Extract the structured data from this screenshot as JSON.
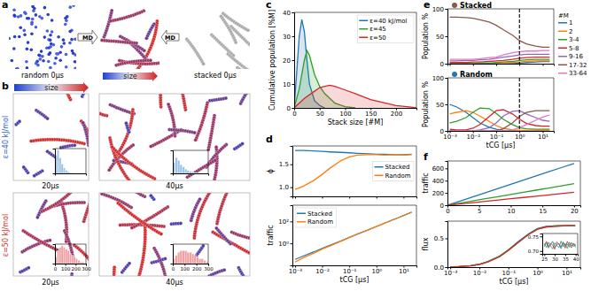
{
  "figure": {
    "panel_labels": [
      "a",
      "b",
      "c",
      "d",
      "e",
      "f"
    ],
    "random_label": "random 0μs",
    "stacked_label": "stacked 0μs",
    "md": "MD",
    "size": "size",
    "eps40": "ε=40 kJ/mol",
    "eps50": "ε=50 kJ/mol",
    "times": [
      "20μs",
      "40μs"
    ]
  },
  "chart_data": [
    {
      "type": "line",
      "xlabel": "Stack size [#M]",
      "ylabel": "Cumulative population [%M]",
      "xlim": [
        0,
        240
      ],
      "xticks": [
        0,
        50,
        100,
        150,
        200
      ],
      "ylim": [
        0,
        40
      ],
      "yticks": [
        0,
        10,
        20,
        30,
        40
      ],
      "legend": "upper right",
      "series": [
        {
          "name": "ε=40 kJ/mol",
          "color": "#1f77b4",
          "type": "area",
          "x": [
            0,
            5,
            10,
            15,
            20,
            25,
            30,
            40,
            50,
            60
          ],
          "values": [
            0,
            15,
            30,
            37,
            32,
            20,
            10,
            3,
            1,
            0
          ]
        },
        {
          "name": "ε=45",
          "color": "#2ca02c",
          "type": "area",
          "x": [
            0,
            10,
            20,
            25,
            30,
            40,
            50,
            60,
            70,
            80,
            100,
            120
          ],
          "values": [
            0,
            8,
            20,
            24,
            22,
            14,
            9,
            6,
            4,
            2,
            0.5,
            0
          ]
        },
        {
          "name": "ε=50",
          "color": "#d62728",
          "type": "area",
          "x": [
            0,
            20,
            40,
            50,
            60,
            70,
            80,
            100,
            120,
            150,
            180,
            200,
            230,
            240
          ],
          "values": [
            0,
            4,
            7,
            8.5,
            9,
            9.5,
            9,
            7.5,
            6,
            3.5,
            2,
            1,
            0.3,
            0
          ]
        }
      ]
    },
    {
      "type": "line",
      "log": "x",
      "ylabel": "ϕ",
      "x": [
        0.001,
        0.002,
        0.005,
        0.01,
        0.02,
        0.05,
        0.1,
        0.2,
        0.5,
        1,
        2,
        5,
        10,
        20
      ],
      "xlim": [
        0.0008,
        30
      ],
      "xticks": [
        0.001,
        0.01,
        0.1,
        1,
        10
      ],
      "ylim": [
        0.8,
        1.9
      ],
      "yticks": [
        {
          "value": 1,
          "label": "1.0"
        },
        {
          "value": 1.5,
          "label": "1.5"
        }
      ],
      "tick_labels": "y",
      "legend": "center right",
      "series": [
        {
          "name": "Stacked",
          "color": "#1f77b4",
          "values": [
            1.8,
            1.8,
            1.79,
            1.78,
            1.77,
            1.76,
            1.75,
            1.74,
            1.73,
            1.72,
            1.72,
            1.71,
            1.71,
            1.72
          ]
        },
        {
          "name": "Random",
          "color": "#ff7f0e",
          "values": [
            0.95,
            1.02,
            1.15,
            1.28,
            1.42,
            1.58,
            1.66,
            1.7,
            1.71,
            1.71,
            1.7,
            1.71,
            1.7,
            1.71
          ]
        }
      ]
    },
    {
      "type": "line",
      "log": true,
      "xlabel": "tCG [μs]",
      "ylabel": "traffic",
      "x": [
        0.001,
        0.002,
        0.005,
        0.01,
        0.02,
        0.05,
        0.1,
        0.2,
        0.5,
        1,
        2,
        5,
        10,
        20
      ],
      "xlim": [
        0.0008,
        30
      ],
      "xticks": [
        {
          "value": 0.001,
          "label": "10⁻³"
        },
        {
          "value": 0.01,
          "label": "10⁻²"
        },
        {
          "value": 0.1,
          "label": "10⁻¹"
        },
        {
          "value": 1,
          "label": "10⁰"
        },
        {
          "value": 10,
          "label": "10¹"
        }
      ],
      "ylim": [
        0.01,
        3000
      ],
      "yticks": [
        {
          "value": 1,
          "label": "10⁰"
        },
        {
          "value": 100,
          "label": "10²"
        }
      ],
      "legend": "upper left",
      "series": [
        {
          "name": "Stacked",
          "color": "#1f77b4",
          "values": [
            0.035,
            0.07,
            0.17,
            0.35,
            0.7,
            1.7,
            3.5,
            7,
            17,
            35,
            70,
            170,
            350,
            700
          ]
        },
        {
          "name": "Random",
          "color": "#ff7f0e",
          "values": [
            0.02,
            0.05,
            0.13,
            0.3,
            0.6,
            1.6,
            3.4,
            6.9,
            17,
            34,
            68,
            170,
            340,
            680
          ]
        }
      ]
    },
    {
      "type": "line",
      "log": "x",
      "title": "Stacked",
      "color": "#8c564b",
      "ylabel": "Population %",
      "x": [
        0.001,
        0.002,
        0.005,
        0.01,
        0.02,
        0.05,
        0.1,
        0.2,
        0.5,
        1,
        2,
        5,
        10,
        20
      ],
      "xlim": [
        0.0008,
        30
      ],
      "xticks": [
        0.001,
        0.01,
        0.1,
        1,
        10
      ],
      "ylim": [
        0,
        100
      ],
      "yticks": [
        0,
        50,
        100
      ],
      "tick_labels": "y",
      "legend": "right",
      "annotations": [
        "#M"
      ],
      "vline": 1,
      "series": [
        {
          "name": "1",
          "color": "#1f77b4",
          "values": [
            0,
            0,
            0,
            0,
            0,
            0,
            0,
            0,
            0,
            1,
            2,
            3,
            4,
            4
          ]
        },
        {
          "name": "2",
          "color": "#ff7f0e",
          "values": [
            0,
            0,
            0,
            0,
            0,
            0,
            1,
            1,
            2,
            3,
            4,
            5,
            5,
            5
          ]
        },
        {
          "name": "3-4",
          "color": "#2ca02c",
          "values": [
            0,
            0,
            0,
            0,
            1,
            1,
            2,
            3,
            4,
            6,
            7,
            8,
            8,
            8
          ]
        },
        {
          "name": "5-8",
          "color": "#d62728",
          "values": [
            2,
            2,
            2,
            3,
            3,
            4,
            5,
            6,
            8,
            10,
            11,
            12,
            12,
            12
          ]
        },
        {
          "name": "9-16",
          "color": "#9467bd",
          "values": [
            5,
            5,
            6,
            6,
            7,
            8,
            10,
            12,
            14,
            16,
            17,
            17,
            17,
            17
          ]
        },
        {
          "name": "17-32",
          "color": "#8c564b",
          "values": [
            85,
            85,
            84,
            83,
            80,
            76,
            70,
            62,
            52,
            42,
            36,
            32,
            30,
            30
          ]
        },
        {
          "name": "33-64",
          "color": "#e377c2",
          "values": [
            8,
            8,
            8,
            8,
            9,
            11,
            12,
            16,
            20,
            22,
            23,
            23,
            24,
            24
          ]
        }
      ]
    },
    {
      "type": "line",
      "log": "x",
      "title": "Random",
      "color": "#1f77b4",
      "xlabel": "tCG [μs]",
      "ylabel": "Population %",
      "x": [
        0.001,
        0.002,
        0.005,
        0.01,
        0.02,
        0.05,
        0.1,
        0.2,
        0.5,
        1,
        2,
        5,
        10,
        20
      ],
      "xlim": [
        0.0008,
        30
      ],
      "xticks": [
        {
          "value": 0.001,
          "label": "10⁻³"
        },
        {
          "value": 0.01,
          "label": "10⁻²"
        },
        {
          "value": 0.1,
          "label": "10⁻¹"
        },
        {
          "value": 1,
          "label": "10⁰"
        },
        {
          "value": 10,
          "label": "10¹"
        }
      ],
      "ylim": [
        0,
        100
      ],
      "yticks": [
        0,
        50,
        100
      ],
      "vline": 1,
      "series": [
        {
          "color": "#1f77b4",
          "values": [
            50,
            45,
            35,
            25,
            15,
            7,
            3,
            1,
            0,
            0,
            0,
            0,
            0,
            0
          ]
        },
        {
          "color": "#ff7f0e",
          "values": [
            32,
            35,
            38,
            35,
            28,
            18,
            10,
            5,
            2,
            1,
            1,
            1,
            1,
            1
          ]
        },
        {
          "color": "#2ca02c",
          "values": [
            15,
            18,
            25,
            35,
            43,
            42,
            33,
            22,
            12,
            6,
            4,
            3,
            3,
            3
          ]
        },
        {
          "color": "#d62728",
          "values": [
            3,
            2,
            2,
            5,
            12,
            27,
            38,
            40,
            32,
            22,
            14,
            10,
            9,
            9
          ]
        },
        {
          "color": "#9467bd",
          "values": [
            0,
            0,
            0,
            0,
            2,
            6,
            15,
            28,
            37,
            38,
            32,
            25,
            20,
            18
          ]
        },
        {
          "color": "#8c564b",
          "values": [
            0,
            0,
            0,
            0,
            0,
            0,
            1,
            4,
            15,
            27,
            35,
            38,
            38,
            38
          ]
        },
        {
          "color": "#e377c2",
          "values": [
            0,
            0,
            0,
            0,
            0,
            0,
            0,
            0,
            2,
            6,
            12,
            20,
            26,
            30
          ]
        }
      ]
    },
    {
      "type": "line",
      "ylabel": "traffic",
      "x": [
        0,
        2,
        4,
        6,
        8,
        10,
        12,
        14,
        16,
        18,
        20
      ],
      "xlim": [
        0,
        21
      ],
      "xticks": [
        0,
        5,
        10,
        15,
        20
      ],
      "ylim": [
        0,
        720
      ],
      "yticks": [
        0,
        200,
        400,
        600
      ],
      "series": [
        {
          "color": "#1f77b4",
          "values": [
            0,
            68,
            136,
            204,
            272,
            340,
            408,
            476,
            544,
            612,
            680
          ]
        },
        {
          "color": "#2ca02c",
          "values": [
            0,
            35,
            70,
            105,
            140,
            175,
            210,
            245,
            280,
            315,
            350
          ]
        },
        {
          "color": "#d62728",
          "values": [
            0,
            21,
            42,
            63,
            84,
            105,
            126,
            147,
            168,
            189,
            210
          ]
        }
      ]
    },
    {
      "type": "line",
      "log": "x",
      "xlabel": "tCG [μs]",
      "ylabel": "flux",
      "x": [
        0.001,
        0.002,
        0.005,
        0.01,
        0.02,
        0.05,
        0.1,
        0.2,
        0.5,
        1,
        2,
        5,
        10,
        20
      ],
      "xlim": [
        0.0008,
        30
      ],
      "xticks": [
        {
          "value": 0.001,
          "label": "10⁻³"
        },
        {
          "value": 0.01,
          "label": "10⁻²"
        },
        {
          "value": 0.1,
          "label": "10⁻¹"
        },
        {
          "value": 1,
          "label": "10⁰"
        },
        {
          "value": 10,
          "label": "10¹"
        }
      ],
      "ylim": [
        0,
        0.8
      ],
      "yticks": [
        {
          "value": 0,
          "label": "0.0"
        },
        {
          "value": 0.5,
          "label": "0.5"
        }
      ],
      "series": [
        {
          "color": "#1f77b4",
          "values": [
            0.003,
            0.01,
            0.025,
            0.05,
            0.1,
            0.19,
            0.3,
            0.43,
            0.58,
            0.67,
            0.71,
            0.72,
            0.72,
            0.72
          ]
        },
        {
          "color": "#2ca02c",
          "values": [
            0.003,
            0.01,
            0.024,
            0.05,
            0.1,
            0.19,
            0.3,
            0.42,
            0.57,
            0.66,
            0.7,
            0.72,
            0.72,
            0.72
          ]
        },
        {
          "color": "#d62728",
          "values": [
            0.002,
            0.009,
            0.022,
            0.045,
            0.09,
            0.18,
            0.29,
            0.41,
            0.57,
            0.66,
            0.7,
            0.71,
            0.72,
            0.72
          ]
        }
      ]
    },
    {
      "type": "line",
      "x": [
        25,
        26,
        27,
        28,
        29,
        30,
        31,
        32,
        33,
        34,
        35,
        36,
        37,
        38,
        39,
        40
      ],
      "xlim": [
        24,
        41
      ],
      "xticks": [
        25,
        30,
        35,
        40
      ],
      "ylim": [
        0.69,
        0.76
      ],
      "yticks": [
        {
          "value": 0.7,
          "label": "0.70"
        },
        {
          "value": 0.75,
          "label": "0.75"
        }
      ],
      "series": [
        {
          "color": "#2ca02c",
          "values": [
            0.725,
            0.712,
            0.73,
            0.716,
            0.707,
            0.728,
            0.719,
            0.711,
            0.734,
            0.714,
            0.726,
            0.709,
            0.73,
            0.717,
            0.723,
            0.712
          ]
        },
        {
          "color": "#d62728",
          "values": [
            0.72,
            0.733,
            0.714,
            0.727,
            0.719,
            0.706,
            0.731,
            0.722,
            0.715,
            0.728,
            0.71,
            0.733,
            0.72,
            0.711,
            0.727,
            0.718
          ]
        },
        {
          "color": "#1f77b4",
          "values": [
            0.715,
            0.728,
            0.71,
            0.722,
            0.733,
            0.712,
            0.72,
            0.726,
            0.708,
            0.731,
            0.718,
            0.724,
            0.713,
            0.729,
            0.716,
            0.722
          ]
        }
      ]
    },
    {
      "type": "histogram",
      "bins": [
        0,
        20,
        40,
        60,
        80,
        100,
        120,
        140,
        160,
        180,
        200,
        220,
        240,
        260,
        280,
        300
      ],
      "counts": [
        22,
        30,
        20,
        12,
        7,
        4,
        2,
        1,
        1,
        0,
        0,
        0,
        0,
        0,
        0
      ],
      "color": "#9ec3e6",
      "xlim": [
        0,
        300
      ],
      "ylim": [
        0,
        32
      ],
      "tick_labels": false
    },
    {
      "type": "histogram",
      "bins": [
        0,
        20,
        40,
        60,
        80,
        100,
        120,
        140,
        160,
        180,
        200,
        220,
        240,
        260,
        280,
        300
      ],
      "counts": [
        15,
        22,
        18,
        12,
        9,
        6,
        4,
        3,
        2,
        1,
        1,
        0,
        0,
        0,
        0
      ],
      "color": "#9ec3e6",
      "xlim": [
        0,
        300
      ],
      "ylim": [
        0,
        32
      ],
      "tick_labels": false
    },
    {
      "type": "histogram",
      "bins": [
        0,
        20,
        40,
        60,
        80,
        100,
        120,
        140,
        160,
        180,
        200,
        220,
        240,
        260,
        280,
        300
      ],
      "counts": [
        4,
        8,
        10,
        11,
        10,
        9,
        8,
        6,
        5,
        4,
        3,
        2,
        1,
        1,
        0
      ],
      "color": "#f0a0a0",
      "xlim": [
        0,
        300
      ],
      "xticks": [
        0,
        100,
        200,
        300
      ],
      "ylim": [
        0,
        12
      ],
      "tick_labels": "x"
    },
    {
      "type": "histogram",
      "bins": [
        0,
        20,
        40,
        60,
        80,
        100,
        120,
        140,
        160,
        180,
        200,
        220,
        240,
        260,
        280,
        300
      ],
      "counts": [
        3,
        5,
        7,
        8,
        8,
        8,
        7,
        7,
        6,
        5,
        4,
        3,
        3,
        2,
        1
      ],
      "color": "#f0a0a0",
      "xlim": [
        0,
        300
      ],
      "xticks": [
        0,
        100,
        200,
        300
      ],
      "ylim": [
        0,
        12
      ],
      "tick_labels": "x"
    }
  ]
}
